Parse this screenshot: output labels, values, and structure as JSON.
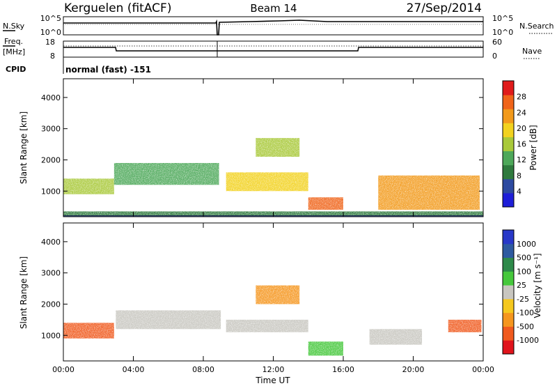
{
  "header": {
    "title": "Kerguelen (fitACF)",
    "beam": "Beam 14",
    "date": "27/Sep/2014"
  },
  "sky_panel": {
    "left_label": "N.Sky",
    "right_label": "N.Search",
    "left_ticks": [
      "10^5",
      "10^0"
    ],
    "right_ticks": [
      "10^5",
      "10^0"
    ]
  },
  "freq_panel": {
    "left_label_line1": "Freq.",
    "left_label_line2": "[MHz]",
    "left_ticks": [
      "18",
      "8"
    ],
    "right_ticks": [
      "60",
      "0"
    ],
    "right_label": "Nave",
    "cpid_label": "CPID",
    "cpid_value": "normal (fast) -151"
  },
  "colors": {
    "power": [
      "#1e1ed8",
      "#2d4aa0",
      "#2f7a3e",
      "#4ea85a",
      "#a9c93a",
      "#f2d21f",
      "#f29a1c",
      "#f0641a",
      "#e01b1b"
    ],
    "velocity": [
      "#e0141c",
      "#f05a1e",
      "#f5961e",
      "#f5c81e",
      "#c8c6c0",
      "#46c83c",
      "#2e8a4a",
      "#2e5aa0",
      "#2838c8"
    ]
  },
  "chart_data": [
    {
      "type": "heatmap",
      "ylabel": "Slant Range [km]",
      "ylim": [
        180,
        4600
      ],
      "yticks": [
        "1000",
        "2000",
        "3000",
        "4000"
      ],
      "colorbar_label": "Power [dB]",
      "colorbar_ticks": [
        "4",
        "8",
        "12",
        "16",
        "20",
        "24",
        "28"
      ],
      "bands": [
        {
          "t": [
            0.0,
            2.9
          ],
          "range": [
            900,
            1400
          ],
          "power": 14
        },
        {
          "t": [
            2.9,
            8.9
          ],
          "range": [
            1200,
            1900
          ],
          "power": 10
        },
        {
          "t": [
            9.3,
            14.0
          ],
          "range": [
            1000,
            1600
          ],
          "power": 18
        },
        {
          "t": [
            11.0,
            13.5
          ],
          "range": [
            2100,
            2700
          ],
          "power": 14
        },
        {
          "t": [
            14.0,
            16.0
          ],
          "range": [
            400,
            800
          ],
          "power": 26
        },
        {
          "t": [
            18.0,
            23.8
          ],
          "range": [
            400,
            1500
          ],
          "power": 22
        },
        {
          "t": [
            0.0,
            24.0
          ],
          "range": [
            200,
            350
          ],
          "power": 6
        }
      ]
    },
    {
      "type": "heatmap",
      "ylabel": "Slant Range [km]",
      "ylim": [
        180,
        4600
      ],
      "yticks": [
        "1000",
        "2000",
        "3000",
        "4000"
      ],
      "xlabel": "Time UT",
      "xticks": [
        "00:00",
        "04:00",
        "08:00",
        "12:00",
        "16:00",
        "20:00",
        "00:00"
      ],
      "colorbar_label": "Velocity [m s⁻¹]",
      "colorbar_ticks": [
        "1000",
        "500",
        "100",
        "25",
        "-25",
        "-100",
        "-500",
        "-1000"
      ],
      "bands": [
        {
          "t": [
            0.0,
            2.9
          ],
          "range": [
            900,
            1400
          ],
          "velocity": -400
        },
        {
          "t": [
            3.0,
            9.0
          ],
          "range": [
            1200,
            1800
          ],
          "velocity": 0
        },
        {
          "t": [
            9.3,
            14.0
          ],
          "range": [
            1100,
            1500
          ],
          "velocity": 0
        },
        {
          "t": [
            11.0,
            13.5
          ],
          "range": [
            2000,
            2600
          ],
          "velocity": -150
        },
        {
          "t": [
            14.0,
            16.0
          ],
          "range": [
            350,
            800
          ],
          "velocity": 60
        },
        {
          "t": [
            17.5,
            20.5
          ],
          "range": [
            700,
            1200
          ],
          "velocity": 0
        },
        {
          "t": [
            22.0,
            23.9
          ],
          "range": [
            1100,
            1500
          ],
          "velocity": -300
        }
      ]
    }
  ]
}
